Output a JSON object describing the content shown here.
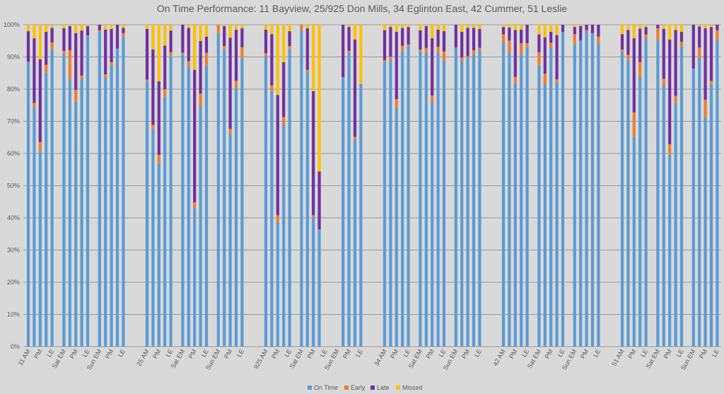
{
  "chart_data": {
    "type": "bar",
    "stacked": true,
    "title": "On Time Performance: 11 Bayview, 25/925 Don Mills, 34 Eglinton East, 42 Cummer, 51 Leslie",
    "xlabel": "",
    "ylabel": "",
    "ylim": [
      0,
      100
    ],
    "yticks": [
      "0%",
      "10%",
      "20%",
      "30%",
      "40%",
      "50%",
      "60%",
      "70%",
      "80%",
      "90%",
      "100%"
    ],
    "grid": true,
    "legend_position": "bottom",
    "series": [
      {
        "key": "on_time",
        "name": "On Time",
        "color": "#5b9bd5"
      },
      {
        "key": "early",
        "name": "Early",
        "color": "#ed7d31"
      },
      {
        "key": "late",
        "name": "Late",
        "color": "#7030a0"
      },
      {
        "key": "missed",
        "name": "Missed",
        "color": "#ffc000"
      }
    ],
    "groups": [
      {
        "route": "11",
        "labels": [
          "11 AM",
          "",
          "PM",
          "",
          "LE",
          "",
          "Sat EM",
          "",
          "PM",
          "",
          "LE",
          "",
          "Sun EM",
          "",
          "PM",
          "",
          "LE"
        ],
        "on_time": [
          88.2,
          74.3,
          60.8,
          85.1,
          92.3,
          null,
          90.8,
          83.1,
          76.1,
          83.1,
          96.7,
          null,
          97.8,
          83.5,
          87.3,
          92.6,
          96.3
        ],
        "early": [
          0.3,
          1.4,
          2.8,
          2.5,
          2.2,
          null,
          1.1,
          9.0,
          3.7,
          1.1,
          0,
          null,
          0.5,
          1.1,
          1.1,
          0,
          1.1
        ],
        "late": [
          9.5,
          20.1,
          25.7,
          10.2,
          4.5,
          null,
          7.0,
          7.5,
          17.6,
          14.0,
          2.9,
          null,
          1.7,
          13.9,
          10.3,
          7.4,
          1.6
        ],
        "missed": [
          2.0,
          4.2,
          10.7,
          2.2,
          1.0,
          null,
          1.1,
          0.4,
          2.6,
          1.8,
          0.4,
          null,
          0,
          1.5,
          1.3,
          0,
          1.0
        ]
      },
      {
        "route": "25",
        "labels": [
          "25 AM",
          "",
          "PM",
          "",
          "LE",
          "",
          "Sat EM",
          "",
          "PM",
          "",
          "LE",
          "",
          "Sun EM",
          "",
          "PM",
          "",
          "LE"
        ],
        "on_time": [
          82.4,
          67.6,
          57.0,
          77.6,
          90.2,
          null,
          90.8,
          86.9,
          43.0,
          74.6,
          87.3,
          null,
          97.4,
          92.4,
          66.2,
          80.4,
          89.7
        ],
        "early": [
          0.5,
          1.3,
          2.6,
          2.4,
          1.3,
          null,
          0.5,
          1.8,
          1.8,
          4.0,
          4.0,
          null,
          2.6,
          1.0,
          1.5,
          2.2,
          3.3
        ],
        "late": [
          15.8,
          23.4,
          22.8,
          13.5,
          6.7,
          null,
          8.7,
          10.3,
          41.2,
          16.4,
          5.0,
          null,
          0,
          6.2,
          28.3,
          15.9,
          5.9
        ],
        "missed": [
          1.3,
          7.7,
          17.6,
          6.5,
          1.8,
          null,
          0,
          1.0,
          14.0,
          5.0,
          3.7,
          null,
          0,
          0.4,
          4.0,
          1.5,
          1.1
        ]
      },
      {
        "route": "925",
        "labels": [
          "925 AM",
          "",
          "PM",
          "",
          "LE",
          "",
          "Sat EM",
          "",
          "PM",
          "",
          "LE",
          "",
          "Sun EM",
          "",
          "PM",
          "",
          "LE"
        ],
        "on_time": [
          90.2,
          79.4,
          38.7,
          68.9,
          92.4,
          null,
          98.2,
          85.3,
          40.1,
          36.4,
          null,
          null,
          null,
          83.7,
          91.2,
          64.3,
          81.6
        ],
        "early": [
          1.0,
          1.8,
          2.1,
          2.4,
          1.0,
          null,
          1.8,
          0.7,
          0.7,
          0,
          null,
          null,
          null,
          0,
          0.7,
          0.9,
          0
        ],
        "late": [
          7.3,
          15.9,
          37.4,
          17.1,
          4.6,
          null,
          0,
          12.9,
          38.6,
          18.0,
          null,
          null,
          null,
          16.3,
          7.4,
          30.2,
          0
        ],
        "missed": [
          1.5,
          2.9,
          21.8,
          11.6,
          2.0,
          null,
          0,
          1.1,
          20.6,
          45.6,
          null,
          null,
          null,
          0,
          0.7,
          4.6,
          18.4
        ]
      },
      {
        "route": "34",
        "labels": [
          "34 AM",
          "",
          "PM",
          "",
          "LE",
          "",
          "Sat EM",
          "",
          "PM",
          "",
          "LE",
          "",
          "Sun EM",
          "",
          "PM",
          "",
          "LE"
        ],
        "on_time": [
          88.5,
          89.0,
          74.3,
          91.7,
          93.5,
          null,
          91.7,
          91.3,
          76.0,
          91.2,
          88.8,
          null,
          92.9,
          88.8,
          89.7,
          90.8,
          92.1
        ],
        "early": [
          0.5,
          1.1,
          2.6,
          1.8,
          0.4,
          null,
          0.6,
          1.5,
          2.0,
          2.0,
          2.9,
          null,
          0,
          1.0,
          0.5,
          1.3,
          0.7
        ],
        "late": [
          9.3,
          9.2,
          20.9,
          5.5,
          5.4,
          null,
          6.0,
          6.8,
          17.8,
          5.3,
          6.3,
          null,
          7.1,
          8.0,
          8.8,
          6.9,
          5.9
        ],
        "missed": [
          1.7,
          0.7,
          2.2,
          1.0,
          0.7,
          null,
          1.7,
          0.4,
          4.2,
          1.5,
          2.0,
          null,
          0,
          2.2,
          1.0,
          1.0,
          1.3
        ]
      },
      {
        "route": "42",
        "labels": [
          "42 AM",
          "",
          "PM",
          "",
          "LE",
          "",
          "Sat EM",
          "",
          "PM",
          "",
          "LE",
          "",
          "Sun EM",
          "",
          "PM",
          "",
          "LE"
        ],
        "on_time": [
          94.3,
          91.2,
          81.8,
          90.6,
          93.0,
          null,
          87.5,
          81.4,
          92.9,
          82.1,
          97.8,
          null,
          93.8,
          95.2,
          98.0,
          97.4,
          94.3
        ],
        "early": [
          2.7,
          3.9,
          2.0,
          3.7,
          1.3,
          null,
          4.0,
          3.4,
          1.5,
          0.9,
          0,
          null,
          3.3,
          0,
          0.3,
          0,
          2.0
        ],
        "late": [
          2.3,
          4.0,
          14.6,
          4.2,
          5.7,
          null,
          5.5,
          11.3,
          3.4,
          13.8,
          2.2,
          null,
          2.2,
          4.4,
          1.7,
          2.6,
          3.7
        ],
        "missed": [
          0.7,
          0.9,
          1.6,
          1.5,
          0,
          null,
          3.0,
          3.9,
          2.2,
          3.2,
          0,
          null,
          0.7,
          0.4,
          0,
          0,
          0
        ]
      },
      {
        "route": "51",
        "labels": [
          "51 AM",
          "",
          "PM",
          "",
          "LE",
          "",
          "Sat EM",
          "",
          "PM",
          "",
          "LE",
          "",
          "Sun EM",
          "",
          "PM",
          "",
          "LE"
        ],
        "on_time": [
          91.7,
          89.0,
          65.1,
          83.8,
          95.8,
          null,
          95.2,
          81.2,
          59.6,
          75.7,
          93.2,
          null,
          86.4,
          89.7,
          71.1,
          81.6,
          95.2
        ],
        "early": [
          0.6,
          1.7,
          7.7,
          4.6,
          1.2,
          null,
          3.7,
          2.0,
          3.3,
          2.2,
          1.5,
          null,
          0,
          3.2,
          5.6,
          1.0,
          3.1
        ],
        "late": [
          4.8,
          7.7,
          23.0,
          10.4,
          2.3,
          null,
          1.1,
          15.5,
          32.5,
          20.5,
          3.1,
          null,
          13.6,
          6.6,
          22.2,
          16.7,
          1.7
        ],
        "missed": [
          2.9,
          1.6,
          4.2,
          1.2,
          0.7,
          null,
          0,
          1.3,
          4.6,
          1.6,
          2.2,
          null,
          0,
          0.5,
          1.1,
          0.7,
          0
        ]
      }
    ]
  }
}
